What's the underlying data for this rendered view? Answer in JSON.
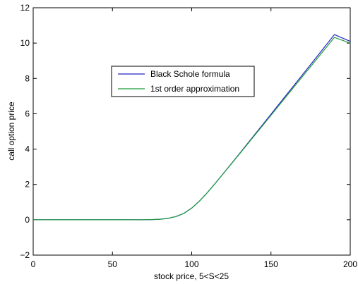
{
  "chart_data": {
    "type": "line",
    "xlabel": "stock price, 5<S<25",
    "ylabel": "call option price",
    "xlim": [
      0,
      200
    ],
    "ylim": [
      -2,
      12
    ],
    "xticks": [
      0,
      50,
      100,
      150,
      200
    ],
    "yticks": [
      -2,
      0,
      2,
      4,
      6,
      8,
      10,
      12
    ],
    "grid": false,
    "legend_position": "upper-center",
    "series": [
      {
        "name": "Black Schole formula",
        "color": "#2323c8",
        "x": [
          0,
          20,
          40,
          60,
          70,
          75,
          80,
          85,
          90,
          95,
          100,
          105,
          110,
          115,
          120,
          130,
          140,
          150,
          160,
          170,
          180,
          190,
          200
        ],
        "y": [
          0,
          0,
          0,
          0,
          0.002,
          0.01,
          0.03,
          0.08,
          0.18,
          0.36,
          0.66,
          1.07,
          1.55,
          2.08,
          2.62,
          3.73,
          4.85,
          5.97,
          7.1,
          8.22,
          9.35,
          10.48,
          10.1
        ]
      },
      {
        "name": "1st order approximation",
        "color": "#1f9a3c",
        "x": [
          0,
          20,
          40,
          60,
          70,
          75,
          80,
          85,
          90,
          95,
          100,
          105,
          110,
          115,
          120,
          130,
          140,
          150,
          160,
          170,
          180,
          190,
          200
        ],
        "y": [
          0,
          0,
          0,
          0,
          0.002,
          0.01,
          0.03,
          0.08,
          0.18,
          0.36,
          0.66,
          1.07,
          1.55,
          2.08,
          2.62,
          3.71,
          4.81,
          5.91,
          7.02,
          8.12,
          9.22,
          10.32,
          10.0
        ]
      }
    ]
  }
}
